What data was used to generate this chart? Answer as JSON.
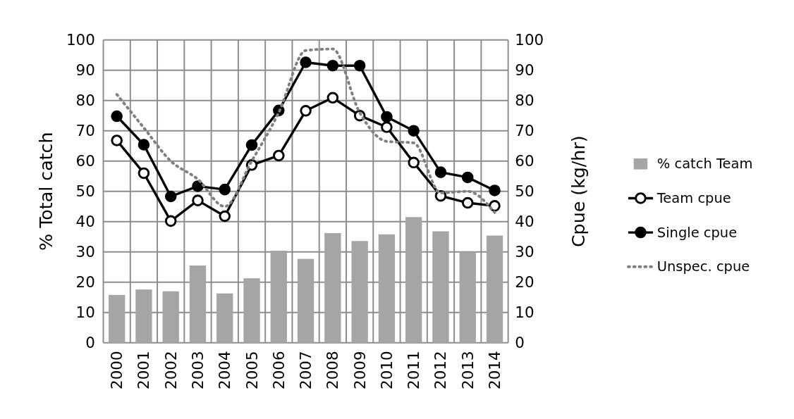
{
  "chart_data": {
    "type": "bar",
    "categories": [
      "2000",
      "2001",
      "2002",
      "2003",
      "2004",
      "2005",
      "2006",
      "2007",
      "2008",
      "2009",
      "2010",
      "2011",
      "2012",
      "2013",
      "2014"
    ],
    "ylabel": "% Total catch",
    "y2label": "Cpue (kg/hr)",
    "ylim": [
      0,
      100
    ],
    "yticks": [
      0,
      10,
      20,
      30,
      40,
      50,
      60,
      70,
      80,
      90,
      100
    ],
    "y2lim": [
      0,
      100
    ],
    "y2ticks": [
      0,
      10,
      20,
      30,
      40,
      50,
      60,
      70,
      80,
      90,
      100
    ],
    "grid": true,
    "legend": "right",
    "series": [
      {
        "name": "% catch Team",
        "color": "#a5a5a5",
        "values": [
          15.8,
          17.6,
          17,
          25.5,
          16.3,
          21.3,
          30.4,
          27.7,
          36.2,
          33.6,
          35.8,
          41.5,
          36.8,
          30,
          35.4
        ]
      },
      {
        "name": "Team cpue",
        "type": "line",
        "axis": "y2",
        "color": "#000000",
        "marker": "circle",
        "line_style": "solid",
        "values": [
          66.8,
          56,
          40.2,
          47,
          41.8,
          58.7,
          61.8,
          76.6,
          80.9,
          75,
          71.2,
          59.5,
          48.5,
          46.2,
          45.2
        ]
      },
      {
        "name": "Single cpue",
        "type": "line",
        "axis": "y2",
        "color": "#000000",
        "marker": "circle",
        "line_style": "solid",
        "values": [
          74.8,
          65.4,
          48.3,
          51.7,
          50.6,
          65.3,
          76.7,
          92.6,
          91.5,
          91.5,
          74.6,
          70,
          56.3,
          54.6,
          50.3
        ]
      },
      {
        "name": "Unspec. cpue",
        "type": "line",
        "axis": "y2",
        "color": "#808080",
        "marker": "none",
        "line_style": "dotted",
        "values": [
          82,
          71,
          60,
          54,
          45,
          60,
          76,
          96.5,
          97,
          76,
          66.5,
          66,
          49.5,
          50,
          43
        ]
      }
    ]
  }
}
